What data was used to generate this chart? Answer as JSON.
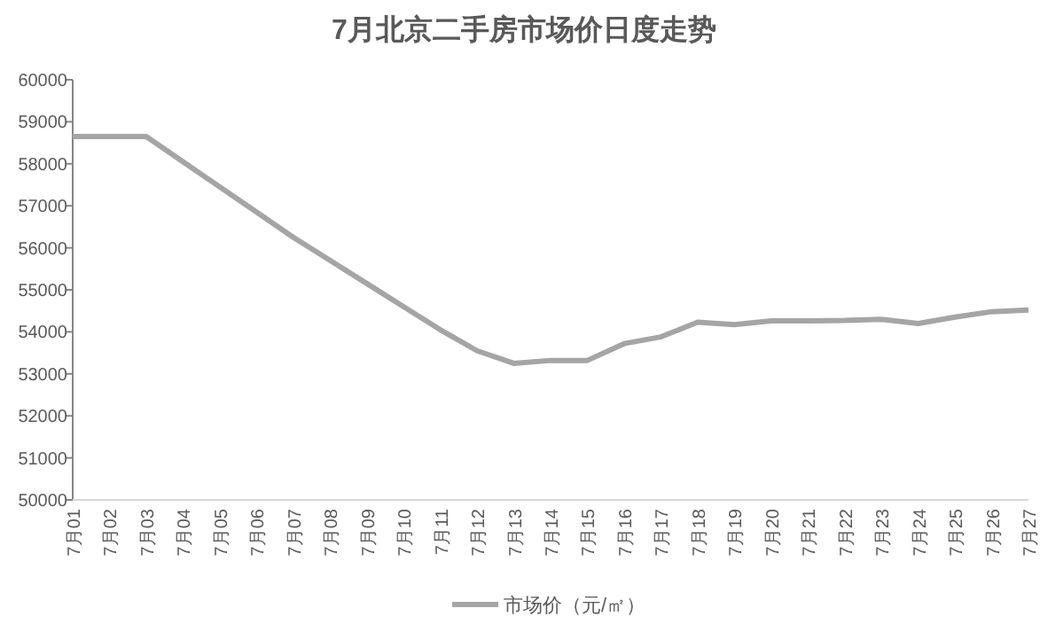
{
  "chart_data": {
    "type": "line",
    "title": "7月北京二手房市场价日度走势",
    "categories": [
      "7月01",
      "7月02",
      "7月03",
      "7月04",
      "7月05",
      "7月06",
      "7月07",
      "7月08",
      "7月09",
      "7月10",
      "7月11",
      "7月12",
      "7月13",
      "7月14",
      "7月15",
      "7月16",
      "7月17",
      "7月18",
      "7月19",
      "7月20",
      "7月21",
      "7月22",
      "7月23",
      "7月24",
      "7月25",
      "7月26",
      "7月27"
    ],
    "series": [
      {
        "name": "市场价（元/㎡）",
        "color": "#a5a5a5",
        "values": [
          58650,
          58650,
          58650,
          58050,
          57450,
          56850,
          56250,
          55700,
          55150,
          54600,
          54050,
          53550,
          53250,
          53320,
          53320,
          53720,
          53880,
          54230,
          54170,
          54260,
          54260,
          54270,
          54300,
          54200,
          54350,
          54480,
          54520
        ]
      }
    ],
    "ylim": [
      50000,
      60000
    ],
    "yticks": [
      50000,
      51000,
      52000,
      53000,
      54000,
      55000,
      56000,
      57000,
      58000,
      59000,
      60000
    ],
    "grid": false,
    "legend": "bottom",
    "marker": "none",
    "line_style": "solid"
  }
}
